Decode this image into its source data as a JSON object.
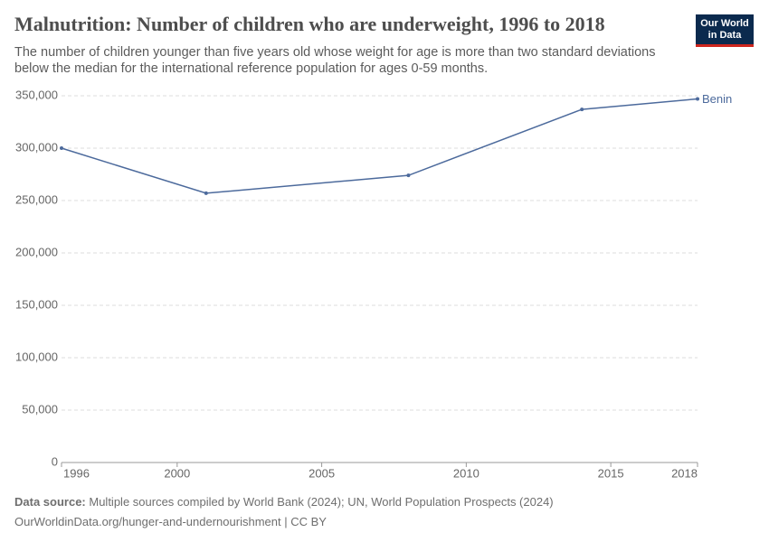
{
  "chart_data": {
    "type": "line",
    "title": "Malnutrition: Number of children who are underweight, 1996 to 2018",
    "subtitle": "The number of children younger than five years old whose weight for age is more than two standard deviations below the median for the international reference population for ages 0-59 months.",
    "x": [
      1996,
      2001,
      2008,
      2014,
      2018
    ],
    "series": [
      {
        "name": "Benin",
        "color": "#4c6a9c",
        "values": [
          300000,
          257000,
          274000,
          337000,
          347000
        ]
      }
    ],
    "xlim": [
      1996,
      2018
    ],
    "xticks": [
      1996,
      2000,
      2005,
      2010,
      2015,
      2018
    ],
    "ylim": [
      0,
      350000
    ],
    "yticks": [
      0,
      {
        "value": 50000,
        "label": "50,000"
      },
      {
        "value": 100000,
        "label": "100,000"
      },
      {
        "value": 150000,
        "label": "150,000"
      },
      {
        "value": 200000,
        "label": "200,000"
      },
      {
        "value": 250000,
        "label": "250,000"
      },
      {
        "value": 300000,
        "label": "300,000"
      },
      {
        "value": 350000,
        "label": "350,000"
      }
    ],
    "grid": true,
    "source_label": "Data source:",
    "source": "Multiple sources compiled by World Bank (2024); UN, World Population Prospects (2024)",
    "footer": "OurWorldinData.org/hunger-and-undernourishment | CC BY",
    "logo": [
      "Our World",
      "in Data"
    ]
  }
}
